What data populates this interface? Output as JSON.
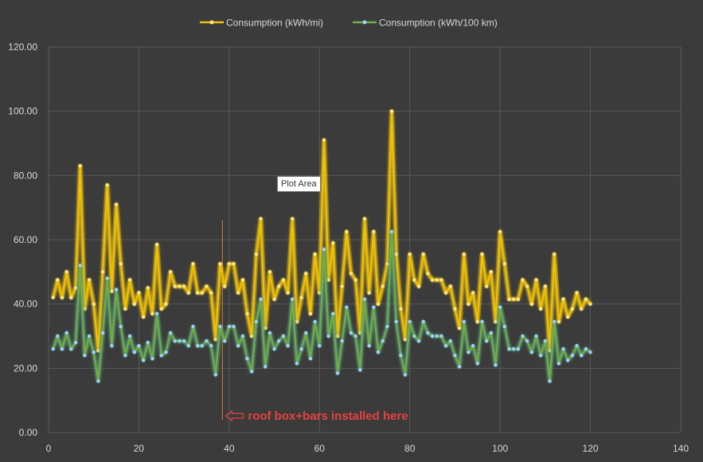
{
  "chart_data": {
    "type": "line",
    "title": "",
    "xlabel": "",
    "ylabel": "",
    "xlim": [
      0,
      140
    ],
    "ylim": [
      0,
      120
    ],
    "x_ticks": [
      "0",
      "20",
      "40",
      "60",
      "80",
      "100",
      "120",
      "140"
    ],
    "y_ticks": [
      "0.00",
      "20.00",
      "40.00",
      "60.00",
      "80.00",
      "100.00",
      "120.00"
    ],
    "grid": true,
    "legend_position": "top",
    "x": [
      1,
      2,
      3,
      4,
      5,
      6,
      7,
      8,
      9,
      10,
      11,
      12,
      13,
      14,
      15,
      16,
      17,
      18,
      19,
      20,
      21,
      22,
      23,
      24,
      25,
      26,
      27,
      28,
      29,
      30,
      31,
      32,
      33,
      34,
      35,
      36,
      37,
      38,
      39,
      40,
      41,
      42,
      43,
      44,
      45,
      46,
      47,
      48,
      49,
      50,
      51,
      52,
      53,
      54,
      55,
      56,
      57,
      58,
      59,
      60,
      61,
      62,
      63,
      64,
      65,
      66,
      67,
      68,
      69,
      70,
      71,
      72,
      73,
      74,
      75,
      76,
      77,
      78,
      79,
      80,
      81,
      82,
      83,
      84,
      85,
      86,
      87,
      88,
      89,
      90,
      91,
      92,
      93,
      94,
      95,
      96,
      97,
      98,
      99,
      100,
      101,
      102,
      103,
      104,
      105,
      106,
      107,
      108,
      109,
      110,
      111,
      112,
      113,
      114,
      115,
      116,
      117,
      118,
      119,
      120
    ],
    "series": [
      {
        "name": "Consumption (kWh/mi)",
        "color": "#f2c100",
        "values": [
          42,
          47.5,
          42,
          50,
          42,
          45,
          83,
          38.5,
          47.5,
          40,
          25.5,
          50,
          77,
          44,
          71,
          52.5,
          38.5,
          47.5,
          40,
          43.5,
          36,
          45,
          37,
          58.5,
          38.5,
          40,
          50,
          45.5,
          45.5,
          45.5,
          43.5,
          52.5,
          43.5,
          43.5,
          45.5,
          43.5,
          29,
          52.5,
          45.5,
          52.5,
          52.5,
          43.5,
          47.5,
          37,
          30,
          55.5,
          66.5,
          32.5,
          50,
          41.5,
          45.5,
          47.5,
          43.5,
          66.5,
          34.5,
          42,
          49.5,
          37,
          55.5,
          43.5,
          91,
          47.5,
          59,
          30,
          45.5,
          62.5,
          49.5,
          47.5,
          31,
          66.5,
          43.5,
          62.5,
          40,
          45.5,
          52.5,
          100,
          55.5,
          38.5,
          29,
          55.5,
          47.5,
          45.5,
          55.5,
          49.5,
          47.5,
          47.5,
          47.5,
          43.5,
          45.5,
          38.5,
          32.5,
          55.5,
          40,
          43.5,
          34.5,
          55.5,
          45.5,
          50,
          34.5,
          62.5,
          52.5,
          41.5,
          41.5,
          41.5,
          47.5,
          45.5,
          40,
          47.5,
          38.5,
          45.5,
          25.5,
          55.5,
          34.5,
          41.5,
          36,
          38.5,
          43.5,
          38.5,
          41.5,
          40
        ]
      },
      {
        "name": "Consumption (kWh/100 km)",
        "color": "#70ad47",
        "values": [
          26,
          30,
          26,
          31,
          26,
          28,
          52,
          24,
          30,
          25,
          16,
          31,
          48,
          27,
          44.5,
          33,
          24,
          30,
          25,
          27,
          22.5,
          28,
          23,
          37,
          24,
          25,
          31,
          28.5,
          28.5,
          28.5,
          27,
          33,
          27,
          27,
          28.5,
          27,
          18,
          33,
          28.5,
          33,
          33,
          27,
          30,
          23,
          19,
          34.5,
          41.5,
          20.5,
          31,
          26,
          28.5,
          30,
          27,
          41.5,
          21.5,
          26,
          31,
          23,
          34.5,
          27,
          57,
          30,
          37,
          18.5,
          28.5,
          39,
          31,
          30,
          19.5,
          41.5,
          27,
          39,
          25,
          28.5,
          33,
          62.5,
          34.5,
          24,
          18,
          34.5,
          30,
          28.5,
          34.5,
          31,
          30,
          30,
          30,
          27,
          28.5,
          24,
          20.5,
          34.5,
          25,
          27,
          21.5,
          34.5,
          28.5,
          31,
          21,
          39,
          33,
          26,
          26,
          26,
          30,
          28.5,
          25,
          30,
          24,
          28.5,
          16,
          34.5,
          21.5,
          26,
          22.5,
          24,
          27,
          24,
          26,
          25
        ]
      }
    ],
    "annotations": [
      {
        "text": "roof box+bars installed here",
        "x": 38.5
      }
    ],
    "tooltip": "Plot Area"
  }
}
